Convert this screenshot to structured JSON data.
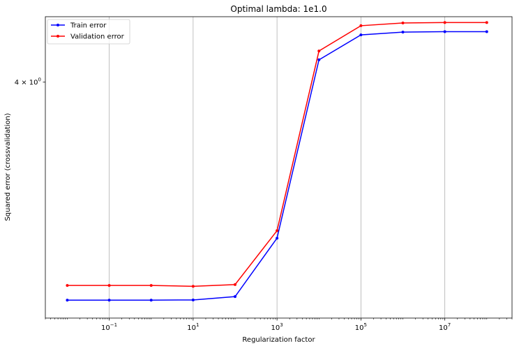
{
  "chart_data": {
    "type": "line",
    "title": "Optimal lambda: 1e1.0",
    "xlabel": "Regularization factor",
    "ylabel": "Squared error (crossvalidation)",
    "xscale": "log",
    "yscale": "log",
    "xlim": [
      0.003,
      400000000
    ],
    "ylim": [
      2.27,
      4.68
    ],
    "x_ticks": [
      {
        "value": 0.1,
        "base": "10",
        "exp": "−1"
      },
      {
        "value": 10,
        "base": "10",
        "exp": "1"
      },
      {
        "value": 1000,
        "base": "10",
        "exp": "3"
      },
      {
        "value": 100000,
        "base": "10",
        "exp": "5"
      },
      {
        "value": 10000000,
        "base": "10",
        "exp": "7"
      }
    ],
    "y_ticks": [
      {
        "value": 4,
        "prefix": "4 × 10",
        "exp": "0"
      }
    ],
    "grid": "vertical lines at major x ticks",
    "legend_position": "upper-left",
    "x": [
      0.01,
      0.1,
      1,
      10,
      100,
      1000,
      10000,
      100000,
      1000000,
      10000000,
      100000000
    ],
    "series": [
      {
        "name": "Train error",
        "color": "#0000ff",
        "values": [
          2.37,
          2.37,
          2.37,
          2.371,
          2.39,
          2.75,
          4.22,
          4.48,
          4.51,
          4.515,
          4.515
        ]
      },
      {
        "name": "Validation error",
        "color": "#ff0000",
        "values": [
          2.455,
          2.455,
          2.455,
          2.45,
          2.46,
          2.8,
          4.31,
          4.58,
          4.61,
          4.615,
          4.615
        ]
      }
    ]
  }
}
